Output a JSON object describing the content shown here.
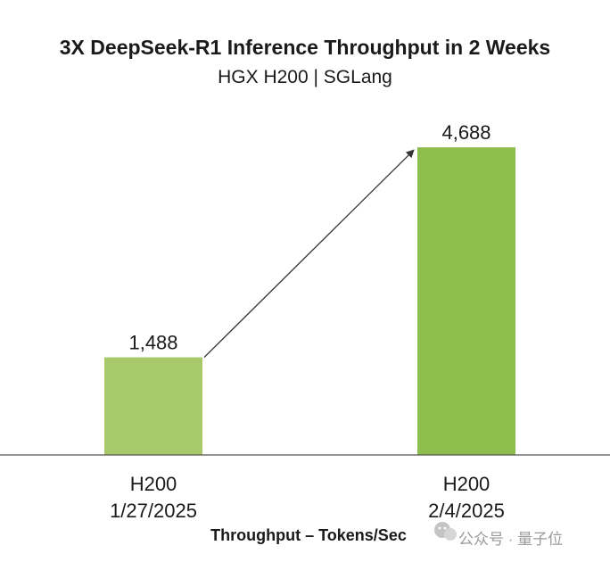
{
  "chart_data": {
    "type": "bar",
    "title": "3X DeepSeek-R1 Inference Throughput in 2 Weeks",
    "subtitle": "HGX H200 | SGLang",
    "categories": [
      {
        "line1": "H200",
        "line2": "1/27/2025"
      },
      {
        "line1": "H200",
        "line2": "2/4/2025"
      }
    ],
    "values": [
      1488,
      4688
    ],
    "value_labels": [
      "1,488",
      "4,688"
    ],
    "bar_colors": [
      "#a8c96a",
      "#8dbd4c"
    ],
    "xlabel": "Throughput – Tokens/Sec",
    "ylim": [
      0,
      5030
    ],
    "grid": false,
    "arrow": {
      "from": 0,
      "to": 1
    }
  },
  "watermark": {
    "icon": "wechat-icon",
    "text": "公众号 · 量子位"
  }
}
